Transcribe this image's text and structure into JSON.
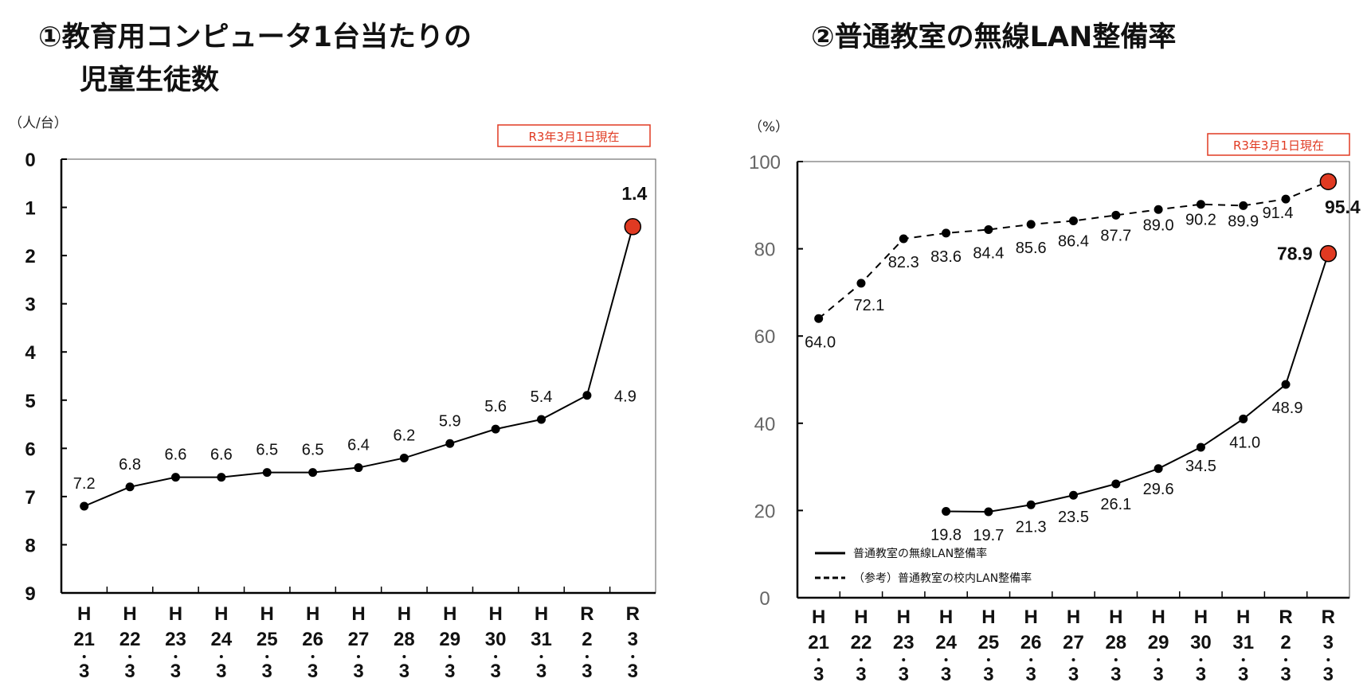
{
  "chart_data": [
    {
      "type": "line",
      "title": "①教育用コンピュータ1台当たりの\n児童生徒数",
      "title_lines": [
        "①教育用コンピュータ1台当たりの",
        "児童生徒数"
      ],
      "ylabel": "（人/台）",
      "note": "R3年3月1日現在",
      "ylim": [
        0,
        9
      ],
      "y_inverted": true,
      "yticks": [
        0,
        1,
        2,
        3,
        4,
        5,
        6,
        7,
        8,
        9
      ],
      "categories": [
        [
          "H",
          "21",
          "3"
        ],
        [
          "H",
          "22",
          "3"
        ],
        [
          "H",
          "23",
          "3"
        ],
        [
          "H",
          "24",
          "3"
        ],
        [
          "H",
          "25",
          "3"
        ],
        [
          "H",
          "26",
          "3"
        ],
        [
          "H",
          "27",
          "3"
        ],
        [
          "H",
          "28",
          "3"
        ],
        [
          "H",
          "29",
          "3"
        ],
        [
          "H",
          "30",
          "3"
        ],
        [
          "H",
          "31",
          "3"
        ],
        [
          "R",
          "2",
          "3"
        ],
        [
          "R",
          "3",
          "3"
        ]
      ],
      "series": [
        {
          "values": [
            7.2,
            6.8,
            6.6,
            6.6,
            6.5,
            6.5,
            6.4,
            6.2,
            5.9,
            5.6,
            5.4,
            4.9,
            1.4
          ],
          "labels": [
            "7.2",
            "6.8",
            "6.6",
            "6.6",
            "6.5",
            "6.5",
            "6.4",
            "6.2",
            "5.9",
            "5.6",
            "5.4",
            "4.9",
            "1.4"
          ],
          "style": "solid",
          "color": "#000000",
          "highlight_last_color": "#e03a22"
        }
      ],
      "grid": false
    },
    {
      "type": "line",
      "title": "②普通教室の無線LAN整備率",
      "ylabel": "（%）",
      "note": "R3年3月1日現在",
      "ylim": [
        0,
        100
      ],
      "yticks": [
        0,
        20,
        40,
        60,
        80,
        100
      ],
      "categories": [
        [
          "H",
          "21",
          "3"
        ],
        [
          "H",
          "22",
          "3"
        ],
        [
          "H",
          "23",
          "3"
        ],
        [
          "H",
          "24",
          "3"
        ],
        [
          "H",
          "25",
          "3"
        ],
        [
          "H",
          "26",
          "3"
        ],
        [
          "H",
          "27",
          "3"
        ],
        [
          "H",
          "28",
          "3"
        ],
        [
          "H",
          "29",
          "3"
        ],
        [
          "H",
          "30",
          "3"
        ],
        [
          "H",
          "31",
          "3"
        ],
        [
          "R",
          "2",
          "3"
        ],
        [
          "R",
          "3",
          "3"
        ]
      ],
      "series": [
        {
          "name": "普通教室の無線LAN整備率",
          "style": "solid",
          "color": "#000000",
          "values": [
            null,
            null,
            null,
            19.8,
            19.7,
            21.3,
            23.5,
            26.1,
            29.6,
            34.5,
            41.0,
            48.9,
            78.9
          ],
          "labels": [
            null,
            null,
            null,
            "19.8",
            "19.7",
            "21.3",
            "23.5",
            "26.1",
            "29.6",
            "34.5",
            "41.0",
            "48.9",
            "78.9"
          ],
          "highlight_last_color": "#e03a22"
        },
        {
          "name": "（参考）普通教室の校内LAN整備率",
          "style": "dashed",
          "color": "#000000",
          "values": [
            64.0,
            72.1,
            82.3,
            83.6,
            84.4,
            85.6,
            86.4,
            87.7,
            89.0,
            90.2,
            89.9,
            91.4,
            95.4
          ],
          "labels": [
            "64.0",
            "72.1",
            "82.3",
            "83.6",
            "84.4",
            "85.6",
            "86.4",
            "87.7",
            "89.0",
            "90.2",
            "89.9",
            "91.4",
            "95.4"
          ],
          "highlight_last_color": "#e03a22"
        }
      ],
      "legend": "bottom-left",
      "grid": false
    }
  ]
}
